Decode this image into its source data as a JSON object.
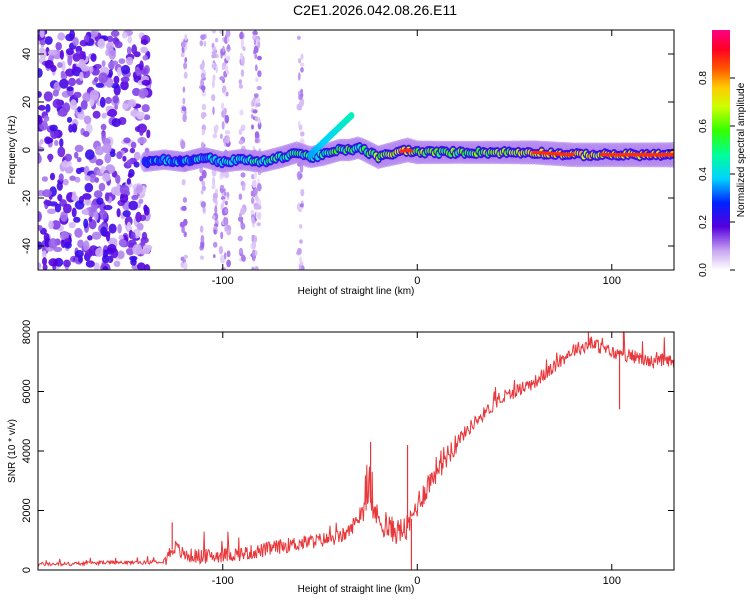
{
  "title": "C2E1.2026.042.08.26.E11",
  "chart_data": [
    {
      "type": "heatmap",
      "title": "C2E1.2026.042.08.26.E11",
      "xlabel": "Height of straight line (km)",
      "ylabel": "Frequency (Hz)",
      "xlim": [
        -195,
        132
      ],
      "ylim": [
        -50,
        50
      ],
      "xticks": [
        -100,
        0,
        100
      ],
      "yticks": [
        -40,
        -20,
        0,
        20,
        40
      ],
      "colorbar": {
        "label": "Normalized spectral amplitude",
        "range": [
          0.0,
          1.0
        ],
        "ticks": [
          0.0,
          0.2,
          0.4,
          0.6,
          0.8
        ],
        "tick_labels": [
          "0.0",
          "0.2",
          "0.4",
          "0.6",
          "0.8"
        ]
      },
      "ridge": {
        "x": [
          -140,
          -130,
          -120,
          -110,
          -100,
          -90,
          -80,
          -70,
          -62,
          -55,
          -48,
          -40,
          -35,
          -30,
          -25,
          -20,
          -15,
          -10,
          -5,
          0,
          10,
          20,
          40,
          60,
          80,
          100,
          120,
          132
        ],
        "freq": [
          -5,
          -4,
          -5,
          -3,
          -5,
          -4,
          -5,
          -3,
          -1,
          -3,
          -2,
          0,
          0,
          1,
          -1,
          -3,
          -2,
          -1,
          0,
          -1,
          -1,
          -1,
          -1,
          -1,
          -2,
          -2,
          -2,
          -2
        ],
        "amplitude": [
          0.3,
          0.35,
          0.35,
          0.4,
          0.45,
          0.5,
          0.5,
          0.55,
          0.55,
          0.55,
          0.55,
          0.6,
          0.6,
          0.6,
          0.65,
          0.7,
          0.75,
          0.85,
          0.9,
          0.75,
          0.7,
          0.65,
          0.7,
          0.8,
          0.85,
          0.85,
          0.9,
          0.95
        ]
      },
      "noise_region_x": [
        -195,
        -138
      ]
    },
    {
      "type": "line",
      "xlabel": "Height of straight line (km)",
      "ylabel": "SNR (10 * v/v)",
      "xlim": [
        -195,
        132
      ],
      "ylim": [
        0,
        8000
      ],
      "xticks": [
        -100,
        0,
        100
      ],
      "yticks": [
        0,
        2000,
        4000,
        6000,
        8000
      ],
      "series": [
        {
          "name": "SNR",
          "color": "#e8373a",
          "x": [
            -195,
            -180,
            -160,
            -140,
            -130,
            -125,
            -120,
            -110,
            -100,
            -90,
            -80,
            -70,
            -60,
            -50,
            -40,
            -35,
            -30,
            -25,
            -20,
            -15,
            -10,
            -5,
            0,
            5,
            10,
            20,
            30,
            40,
            50,
            60,
            70,
            80,
            90,
            100,
            110,
            120,
            132
          ],
          "y": [
            200,
            200,
            250,
            250,
            300,
            800,
            500,
            450,
            500,
            550,
            650,
            800,
            900,
            1000,
            1100,
            1300,
            1800,
            2400,
            1700,
            1400,
            1300,
            1400,
            2200,
            2800,
            3400,
            4300,
            5000,
            5600,
            6000,
            6300,
            6800,
            7400,
            7600,
            7300,
            7200,
            7000,
            7000
          ]
        }
      ],
      "spikes": [
        {
          "x": -126,
          "y": 1600
        },
        {
          "x": -24,
          "y": 4300
        },
        {
          "x": -5,
          "y": 4200
        },
        {
          "x": -3,
          "y": 0
        },
        {
          "x": 88,
          "y": 8000
        },
        {
          "x": 104,
          "y": 5400
        },
        {
          "x": 106,
          "y": 8000
        }
      ]
    }
  ]
}
